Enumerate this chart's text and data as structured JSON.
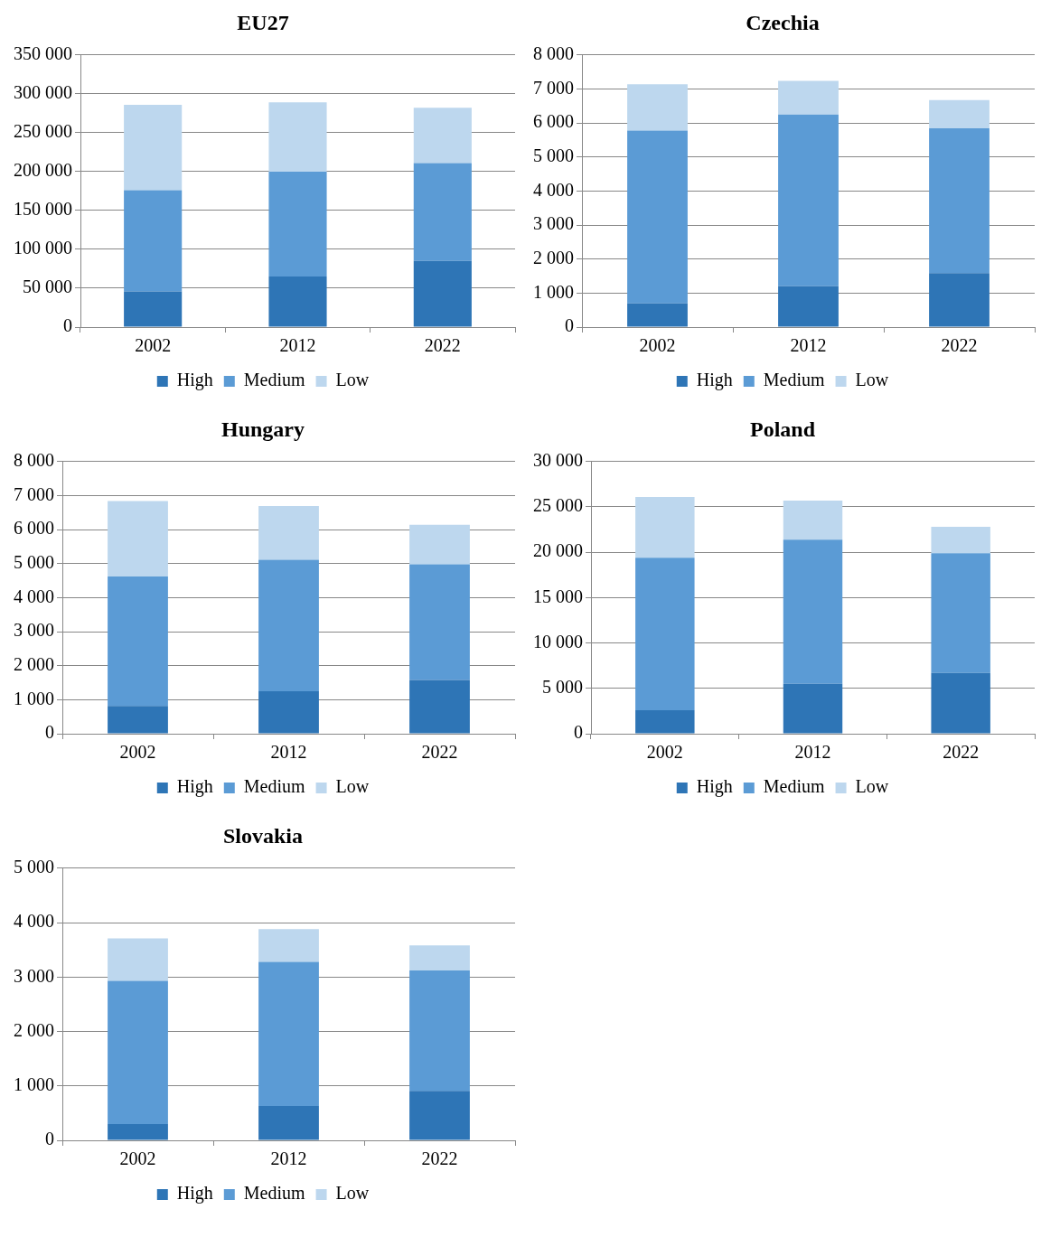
{
  "chart_data": [
    {
      "type": "bar",
      "title": "EU27",
      "stacked": true,
      "categories": [
        "2002",
        "2012",
        "2022"
      ],
      "series": [
        {
          "name": "High",
          "color": "#2e75b6",
          "values": [
            46000,
            65000,
            85000
          ]
        },
        {
          "name": "Medium",
          "color": "#5b9bd5",
          "values": [
            130000,
            135000,
            126000
          ]
        },
        {
          "name": "Low",
          "color": "#bdd7ee",
          "values": [
            110000,
            89000,
            71000
          ]
        }
      ],
      "ylim": [
        0,
        350000
      ],
      "yticks": [
        {
          "value": 0,
          "label": "0"
        },
        {
          "value": 50000,
          "label": "50 000"
        },
        {
          "value": 100000,
          "label": "100 000"
        },
        {
          "value": 150000,
          "label": "150 000"
        },
        {
          "value": 200000,
          "label": "200 000"
        },
        {
          "value": 250000,
          "label": "250 000"
        },
        {
          "value": 300000,
          "label": "300 000"
        },
        {
          "value": 350000,
          "label": "350 000"
        }
      ],
      "grid": "y",
      "legend": "bottom"
    },
    {
      "type": "bar",
      "title": "Czechia",
      "stacked": true,
      "categories": [
        "2002",
        "2012",
        "2022"
      ],
      "series": [
        {
          "name": "High",
          "color": "#2e75b6",
          "values": [
            700,
            1200,
            1590
          ]
        },
        {
          "name": "Medium",
          "color": "#5b9bd5",
          "values": [
            5080,
            5050,
            4250
          ]
        },
        {
          "name": "Low",
          "color": "#bdd7ee",
          "values": [
            1360,
            990,
            830
          ]
        }
      ],
      "ylim": [
        0,
        8000
      ],
      "yticks": [
        {
          "value": 0,
          "label": "0"
        },
        {
          "value": 1000,
          "label": "1 000"
        },
        {
          "value": 2000,
          "label": "2 000"
        },
        {
          "value": 3000,
          "label": "3 000"
        },
        {
          "value": 4000,
          "label": "4 000"
        },
        {
          "value": 5000,
          "label": "5 000"
        },
        {
          "value": 6000,
          "label": "6 000"
        },
        {
          "value": 7000,
          "label": "7 000"
        },
        {
          "value": 8000,
          "label": "8 000"
        }
      ],
      "grid": "y",
      "legend": "bottom"
    },
    {
      "type": "bar",
      "title": "Hungary",
      "stacked": true,
      "categories": [
        "2002",
        "2012",
        "2022"
      ],
      "series": [
        {
          "name": "High",
          "color": "#2e75b6",
          "values": [
            820,
            1250,
            1580
          ]
        },
        {
          "name": "Medium",
          "color": "#5b9bd5",
          "values": [
            3800,
            3860,
            3400
          ]
        },
        {
          "name": "Low",
          "color": "#bdd7ee",
          "values": [
            2220,
            1580,
            1160
          ]
        }
      ],
      "ylim": [
        0,
        8000
      ],
      "yticks": [
        {
          "value": 0,
          "label": "0"
        },
        {
          "value": 1000,
          "label": "1 000"
        },
        {
          "value": 2000,
          "label": "2 000"
        },
        {
          "value": 3000,
          "label": "3 000"
        },
        {
          "value": 4000,
          "label": "4 000"
        },
        {
          "value": 5000,
          "label": "5 000"
        },
        {
          "value": 6000,
          "label": "6 000"
        },
        {
          "value": 7000,
          "label": "7 000"
        },
        {
          "value": 8000,
          "label": "8 000"
        }
      ],
      "grid": "y",
      "legend": "bottom"
    },
    {
      "type": "bar",
      "title": "Poland",
      "stacked": true,
      "categories": [
        "2002",
        "2012",
        "2022"
      ],
      "series": [
        {
          "name": "High",
          "color": "#2e75b6",
          "values": [
            2600,
            5500,
            6700
          ]
        },
        {
          "name": "Medium",
          "color": "#5b9bd5",
          "values": [
            16800,
            15900,
            13200
          ]
        },
        {
          "name": "Low",
          "color": "#bdd7ee",
          "values": [
            6700,
            4300,
            2900
          ]
        }
      ],
      "ylim": [
        0,
        30000
      ],
      "yticks": [
        {
          "value": 0,
          "label": "0"
        },
        {
          "value": 5000,
          "label": "5 000"
        },
        {
          "value": 10000,
          "label": "10 000"
        },
        {
          "value": 15000,
          "label": "15 000"
        },
        {
          "value": 20000,
          "label": "20 000"
        },
        {
          "value": 25000,
          "label": "25 000"
        },
        {
          "value": 30000,
          "label": "30 000"
        }
      ],
      "grid": "y",
      "legend": "bottom"
    },
    {
      "type": "bar",
      "title": "Slovakia",
      "stacked": true,
      "categories": [
        "2002",
        "2012",
        "2022"
      ],
      "series": [
        {
          "name": "High",
          "color": "#2e75b6",
          "values": [
            300,
            630,
            910
          ]
        },
        {
          "name": "Medium",
          "color": "#5b9bd5",
          "values": [
            2630,
            2650,
            2210
          ]
        },
        {
          "name": "Low",
          "color": "#bdd7ee",
          "values": [
            780,
            600,
            460
          ]
        }
      ],
      "ylim": [
        0,
        5000
      ],
      "yticks": [
        {
          "value": 0,
          "label": "0"
        },
        {
          "value": 1000,
          "label": "1 000"
        },
        {
          "value": 2000,
          "label": "2 000"
        },
        {
          "value": 3000,
          "label": "3 000"
        },
        {
          "value": 4000,
          "label": "4 000"
        },
        {
          "value": 5000,
          "label": "5 000"
        }
      ],
      "grid": "y",
      "legend": "bottom"
    }
  ]
}
